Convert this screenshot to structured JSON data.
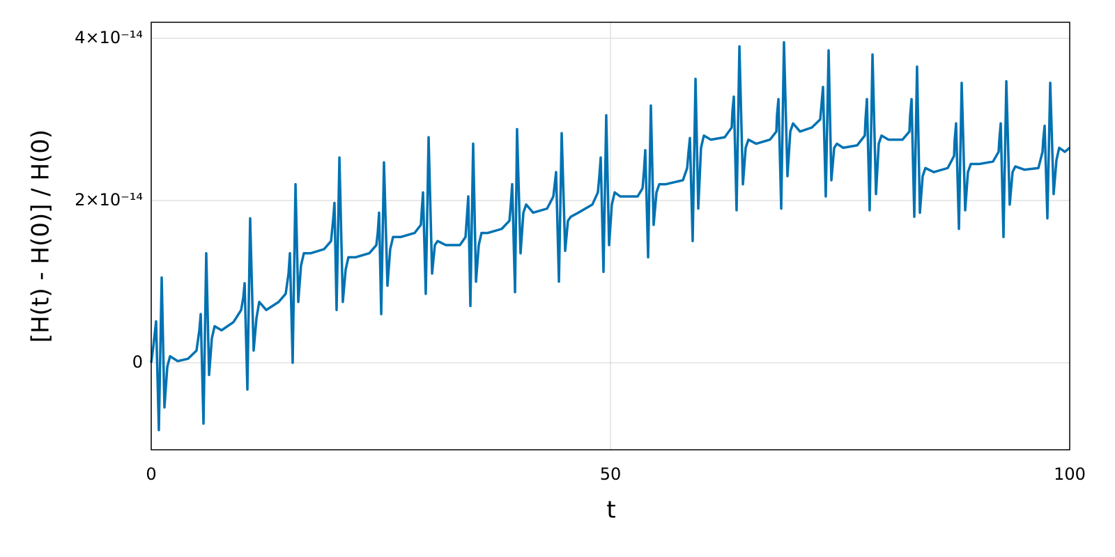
{
  "chart_data": {
    "type": "line",
    "x_label": "t",
    "y_label": "[H(t) - H(0)] / H(0)",
    "color": "#0072b2",
    "grid": true,
    "xlim": [
      0,
      100
    ],
    "xticks": [
      0,
      50,
      100
    ],
    "ylim": [
      -1.073e-14,
      4.197e-14
    ],
    "yticks": [
      0,
      {
        "value": 2e-14,
        "label": "2×10⁻¹⁴"
      },
      {
        "value": 4e-14,
        "label": "4×10⁻¹⁴"
      }
    ],
    "x": [
      0,
      0.23,
      0.53,
      0.83,
      1.14,
      1.44,
      1.75,
      2.05,
      2.88,
      4.02,
      4.93,
      5.24,
      5.39,
      5.69,
      5.99,
      6.3,
      6.6,
      6.9,
      7.66,
      8.95,
      9.79,
      10.02,
      10.17,
      10.47,
      10.77,
      11.15,
      11.46,
      11.76,
      12.52,
      13.88,
      14.64,
      14.95,
      15.1,
      15.4,
      15.71,
      16.01,
      16.31,
      16.62,
      17.37,
      18.82,
      19.58,
      19.8,
      19.95,
      20.18,
      20.49,
      20.86,
      21.17,
      21.47,
      22.23,
      23.75,
      24.51,
      24.66,
      24.81,
      25.04,
      25.34,
      25.72,
      26.02,
      26.33,
      27.16,
      28.68,
      29.36,
      29.44,
      29.59,
      29.89,
      30.2,
      30.58,
      30.88,
      31.18,
      32.09,
      33.61,
      34.22,
      34.37,
      34.52,
      34.75,
      35.05,
      35.36,
      35.66,
      35.96,
      36.65,
      38.16,
      39,
      39.15,
      39.3,
      39.61,
      39.83,
      40.21,
      40.52,
      40.82,
      41.58,
      43.1,
      43.78,
      43.93,
      44.08,
      44.39,
      44.69,
      45.07,
      45.37,
      45.68,
      46.51,
      48.03,
      48.63,
      48.79,
      48.94,
      49.24,
      49.54,
      49.85,
      50.15,
      50.46,
      51.06,
      52.96,
      53.49,
      53.64,
      53.79,
      54.1,
      54.4,
      54.7,
      55.01,
      55.31,
      55.99,
      57.89,
      58.35,
      58.5,
      58.65,
      58.95,
      59.26,
      59.56,
      59.86,
      60.17,
      60.93,
      62.44,
      63.2,
      63.28,
      63.43,
      63.73,
      64.04,
      64.42,
      64.72,
      65.02,
      65.86,
      67.37,
      68.06,
      68.13,
      68.29,
      68.59,
      68.89,
      69.27,
      69.58,
      69.88,
      70.64,
      71.93,
      72.84,
      72.99,
      73.14,
      73.44,
      73.75,
      74.05,
      74.36,
      74.66,
      75.34,
      76.86,
      77.69,
      77.77,
      77.92,
      78.22,
      78.53,
      78.91,
      79.21,
      79.51,
      80.27,
      81.79,
      82.55,
      82.63,
      82.78,
      83.08,
      83.38,
      83.69,
      83.99,
      84.29,
      85.2,
      86.72,
      87.41,
      87.48,
      87.63,
      87.94,
      88.24,
      88.62,
      88.92,
      89.23,
      90.14,
      91.65,
      92.26,
      92.34,
      92.49,
      92.79,
      93.1,
      93.47,
      93.78,
      94.08,
      95.07,
      96.59,
      97.04,
      97.12,
      97.27,
      97.57,
      97.88,
      98.25,
      98.56,
      98.86,
      99.47,
      100
    ],
    "values": [
      0,
      2e-15,
      5.1e-15,
      -8.3e-15,
      1.05e-14,
      -5.5e-15,
      -5e-16,
      8e-16,
      2e-16,
      5e-16,
      1.5e-15,
      4e-15,
      6e-15,
      -7.5e-15,
      1.35e-14,
      -1.5e-15,
      3e-15,
      4.5e-15,
      4e-15,
      5e-15,
      6.5e-15,
      8e-15,
      9.8e-15,
      -3.3e-15,
      1.78e-14,
      1.5e-15,
      5.5e-15,
      7.5e-15,
      6.5e-15,
      7.5e-15,
      8.5e-15,
      1.1e-14,
      1.35e-14,
      0,
      2.2e-14,
      7.5e-15,
      1.2e-14,
      1.35e-14,
      1.35e-14,
      1.4e-14,
      1.5e-14,
      1.75e-14,
      1.97e-14,
      6.5e-15,
      2.53e-14,
      7.5e-15,
      1.15e-14,
      1.3e-14,
      1.3e-14,
      1.35e-14,
      1.45e-14,
      1.6e-14,
      1.85e-14,
      6e-15,
      2.47e-14,
      9.5e-15,
      1.4e-14,
      1.55e-14,
      1.55e-14,
      1.6e-14,
      1.7e-14,
      1.85e-14,
      2.1e-14,
      8.5e-15,
      2.78e-14,
      1.1e-14,
      1.45e-14,
      1.5e-14,
      1.45e-14,
      1.45e-14,
      1.55e-14,
      1.8e-14,
      2.05e-14,
      7e-15,
      2.7e-14,
      1e-14,
      1.45e-14,
      1.6e-14,
      1.6e-14,
      1.65e-14,
      1.75e-14,
      1.95e-14,
      2.2e-14,
      8.7e-15,
      2.88e-14,
      1.35e-14,
      1.85e-14,
      1.95e-14,
      1.85e-14,
      1.9e-14,
      2.05e-14,
      2.2e-14,
      2.35e-14,
      1e-14,
      2.83e-14,
      1.38e-14,
      1.75e-14,
      1.8e-14,
      1.85e-14,
      1.95e-14,
      2.1e-14,
      2.3e-14,
      2.53e-14,
      1.12e-14,
      3.05e-14,
      1.45e-14,
      1.95e-14,
      2.1e-14,
      2.05e-14,
      2.05e-14,
      2.15e-14,
      2.35e-14,
      2.62e-14,
      1.3e-14,
      3.17e-14,
      1.7e-14,
      2.1e-14,
      2.2e-14,
      2.2e-14,
      2.25e-14,
      2.4e-14,
      2.6e-14,
      2.77e-14,
      1.5e-14,
      3.5e-14,
      1.9e-14,
      2.65e-14,
      2.8e-14,
      2.75e-14,
      2.78e-14,
      2.9e-14,
      3.1e-14,
      3.28e-14,
      1.88e-14,
      3.9e-14,
      2.2e-14,
      2.65e-14,
      2.75e-14,
      2.7e-14,
      2.75e-14,
      2.85e-14,
      3.05e-14,
      3.25e-14,
      1.9e-14,
      3.95e-14,
      2.3e-14,
      2.85e-14,
      2.95e-14,
      2.85e-14,
      2.9e-14,
      3e-14,
      3.2e-14,
      3.4e-14,
      2.05e-14,
      3.85e-14,
      2.25e-14,
      2.65e-14,
      2.7e-14,
      2.65e-14,
      2.68e-14,
      2.8e-14,
      3e-14,
      3.25e-14,
      1.88e-14,
      3.8e-14,
      2.08e-14,
      2.7e-14,
      2.8e-14,
      2.75e-14,
      2.75e-14,
      2.85e-14,
      3.05e-14,
      3.25e-14,
      1.8e-14,
      3.65e-14,
      1.85e-14,
      2.3e-14,
      2.4e-14,
      2.35e-14,
      2.4e-14,
      2.55e-14,
      2.75e-14,
      2.95e-14,
      1.65e-14,
      3.45e-14,
      1.88e-14,
      2.35e-14,
      2.45e-14,
      2.45e-14,
      2.48e-14,
      2.6e-14,
      2.75e-14,
      2.95e-14,
      1.55e-14,
      3.47e-14,
      1.95e-14,
      2.35e-14,
      2.42e-14,
      2.38e-14,
      2.4e-14,
      2.6e-14,
      2.75e-14,
      2.92e-14,
      1.78e-14,
      3.45e-14,
      2.08e-14,
      2.5e-14,
      2.65e-14,
      2.6e-14,
      2.65e-14
    ]
  }
}
